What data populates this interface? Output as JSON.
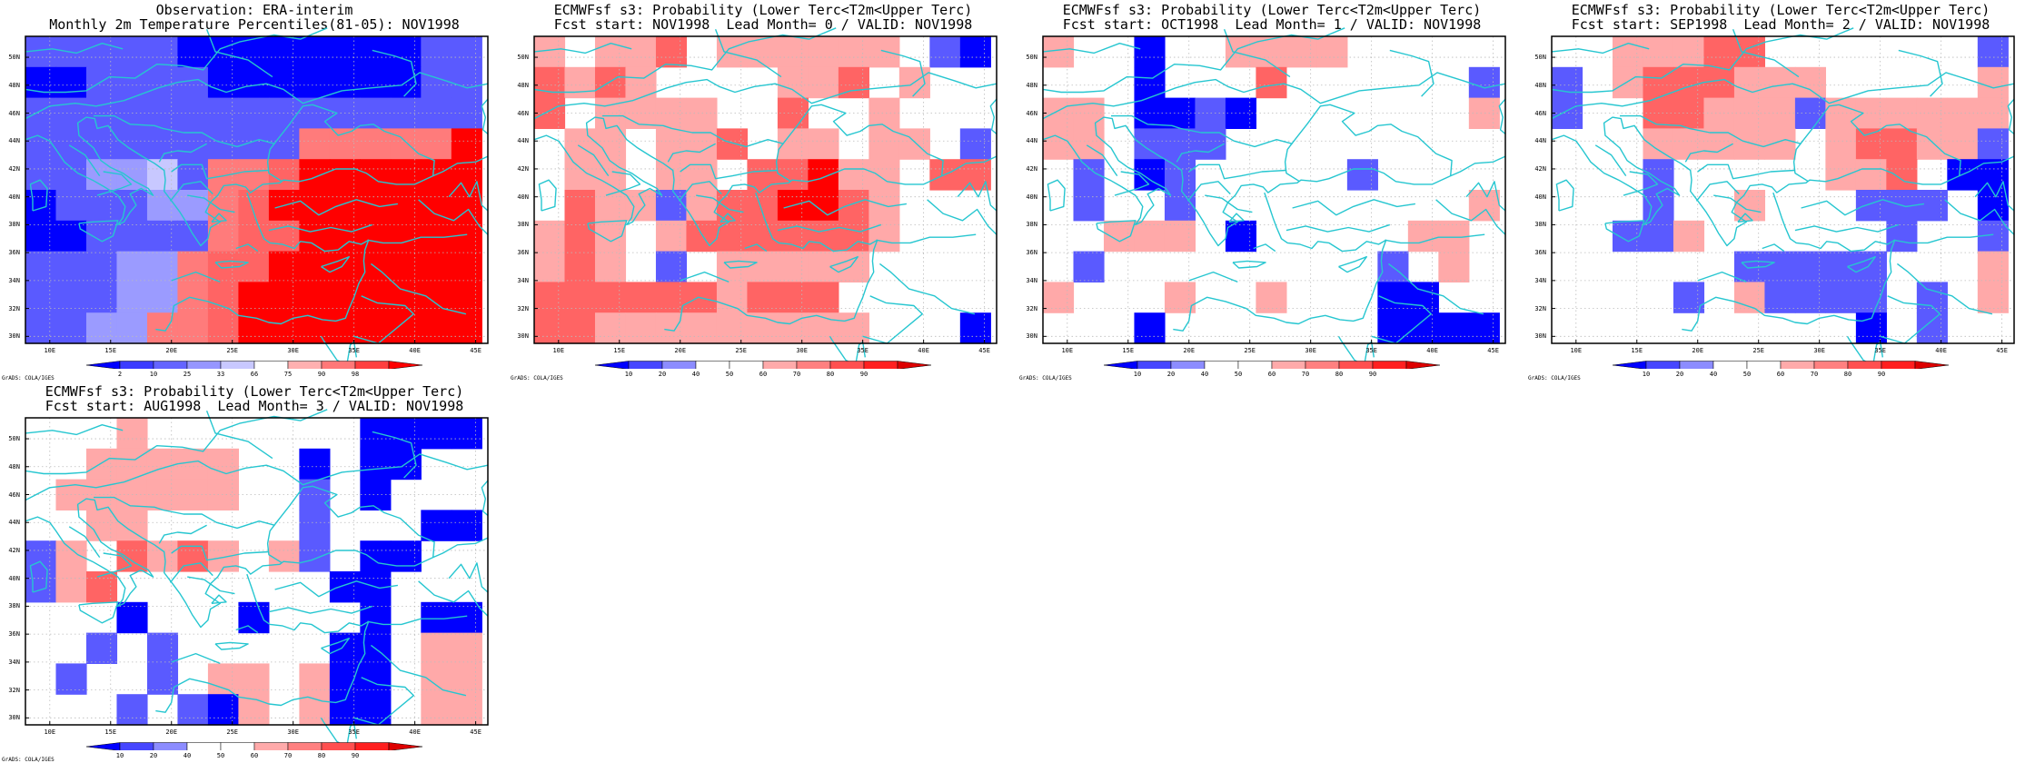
{
  "map_extent": {
    "lon": [
      8,
      46
    ],
    "lat": [
      29.5,
      51.5
    ]
  },
  "axes": {
    "lat_labels": [
      {
        "v": 30,
        "t": "30N"
      },
      {
        "v": 32,
        "t": "32N"
      },
      {
        "v": 34,
        "t": "34N"
      },
      {
        "v": 36,
        "t": "36N"
      },
      {
        "v": 38,
        "t": "38N"
      },
      {
        "v": 40,
        "t": "40N"
      },
      {
        "v": 42,
        "t": "42N"
      },
      {
        "v": 44,
        "t": "44N"
      },
      {
        "v": 46,
        "t": "46N"
      },
      {
        "v": 48,
        "t": "48N"
      },
      {
        "v": 50,
        "t": "50N"
      }
    ],
    "lon_labels": [
      {
        "v": 10,
        "t": "10E"
      },
      {
        "v": 15,
        "t": "15E"
      },
      {
        "v": 20,
        "t": "20E"
      },
      {
        "v": 25,
        "t": "25E"
      },
      {
        "v": 30,
        "t": "30E"
      },
      {
        "v": 35,
        "t": "35E"
      },
      {
        "v": 40,
        "t": "40E"
      },
      {
        "v": 45,
        "t": "45E"
      }
    ]
  },
  "grid": {
    "lon0": 8,
    "dlon": 2.5,
    "nx": 15,
    "lat0": 51.5,
    "dlat": 2.2,
    "ny": 10
  },
  "colors": {
    "coast": "#26c6d0",
    "gridline": "#bbbbbb",
    "frame": "#000000"
  },
  "credit": "GrADS: COLA/IGES",
  "colorbars": {
    "obs": {
      "labels": [
        "2",
        "10",
        "25",
        "33",
        "66",
        "75",
        "90",
        "98"
      ],
      "colors": [
        "#0000ff",
        "#3c3cff",
        "#6464ff",
        "#9696ff",
        "#c8c8ff",
        "#ffffff",
        "#ffb0b0",
        "#ff7878",
        "#ff4040",
        "#ff0000"
      ]
    },
    "prob": {
      "labels": [
        "10",
        "20",
        "40",
        "50",
        "60",
        "70",
        "80",
        "90"
      ],
      "colors": [
        "#0000ff",
        "#4646ff",
        "#8c8cff",
        "#ffffff",
        "#ffffff",
        "#ffaaaa",
        "#ff8080",
        "#ff5050",
        "#ff2020",
        "#dd0000"
      ]
    }
  },
  "panels": [
    {
      "title1": "Observation: ERA-interim",
      "title2": "Monthly 2m Temperature Percentiles(81-05): NOV1998",
      "bar": "obs",
      "cells": [
        "BBBBBAAAAAAAABB",
        "AABBBBAAAAAAABB",
        "BBBBBBBBBBBBBBB",
        "BBBBBBBBBSSSSSR",
        "BBCCDBSSQRRRRRR",
        "ABBBCCSQRRRRRRR",
        "AABBBBSQQRRRRRR",
        "BBBCCSQQRRRRRRR",
        "BBBCCSQRRRRRRRR",
        "BBCCSSQRRRRRRRR"
      ]
    },
    {
      "title1": "ECMWFsf s3: Probability (Lower Terc<T2m<Upper Terc)",
      "title2": "Fcst start: NOV1998  Lead Month= 0 / VALID: NOV1998",
      "bar": "prob",
      "cells": [
        "P.PPQ.PPPPPP.BA",
        "QPQP....PPQ.P..",
        "Q.PPPP..Q..P...",
        ".PP.PPQ.PP.PP.B",
        ".PP.PP.QQRPP.QQ",
        ".QPPBPQQRRQP...",
        "PQP.PQQQQQQP...",
        "PQP.B.PPPPP....",
        "QQQQQQPQQQ.....",
        "QQPPPPPPPPP...A"
      ]
    },
    {
      "title1": "ECMWFsf s3: Probability (Lower Terc<T2m<Upper Terc)",
      "title2": "Fcst start: OCT1998  Lead Month= 1 / VALID: NOV1998",
      "bar": "prob",
      "cells": [
        "P..A..PPPP.....",
        "...A...Q......B",
        "PP.AABA.......P",
        "PP.BBB.........",
        ".B.AB.....B....",
        ".B..B.........P",
        "..PPP.A.....PP.",
        ".B.........B.P.",
        "P...P..P...AA..",
        "...A.......AAAA"
      ]
    },
    {
      "title1": "ECMWFsf s3: Probability (Lower Terc<T2m<Upper Terc)",
      "title2": "Fcst start: SEP1998  Lead Month= 2 / VALID: NOV1998",
      "bar": "prob",
      "cells": [
        "..PPPQQ.......B",
        "B.PQQQPPP.....P",
        "B..QQPPPBPPPPPP",
        "...PPPPP.PQQPPB",
        "...B.....PPQ.AA",
        "...B..P...BBB.A",
        "..BBP......B..B",
        "......BBBBB...P",
        "....B.PBBBB.B.P",
        "..........A.B.."
      ]
    },
    {
      "title1": "ECMWFsf s3: Probability (Lower Terc<T2m<Upper Terc)",
      "title2": "Fcst start: AUG1998  Lead Month= 3 / VALID: NOV1998",
      "bar": "prob",
      "cells": [
        "...P.......AAAA",
        "..PPPPP..A.AA..",
        ".PPPPPP..B.A...",
        "..PP.....B...AA",
        "BP.QPQP.PB.AA..",
        "BPQ.......AA...",
        "...A...A...A.AA",
        "..B.B.....AA.PP",
        ".B..B.PP.PAA.PP",
        "...B.BAP.PAA.PP"
      ]
    }
  ]
}
